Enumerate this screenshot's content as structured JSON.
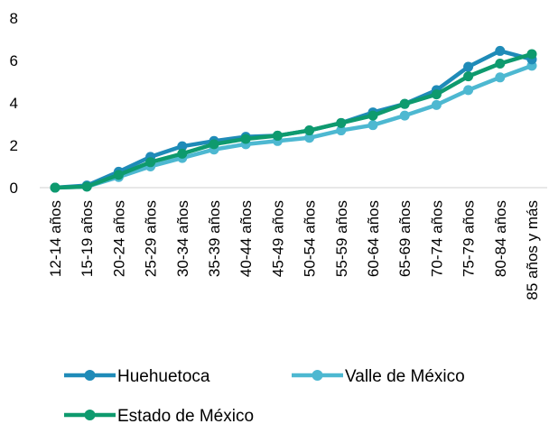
{
  "chart_data": {
    "type": "line",
    "categories": [
      "12-14 años",
      "15-19 años",
      "20-24 años",
      "25-29 años",
      "30-34 años",
      "35-39 años",
      "40-44 años",
      "45-49 años",
      "50-54 años",
      "55-59 años",
      "60-64 años",
      "65-69 años",
      "70-74 años",
      "75-79 años",
      "80-84 años",
      "85 años y más"
    ],
    "series": [
      {
        "name": "Huehuetoca",
        "color": "#1f8bb8",
        "values": [
          0.0,
          0.1,
          0.75,
          1.45,
          1.95,
          2.2,
          2.4,
          2.45,
          2.7,
          3.05,
          3.55,
          3.95,
          4.6,
          5.7,
          6.45,
          6.05
        ]
      },
      {
        "name": "Valle de México",
        "color": "#4db8d1",
        "values": [
          0.0,
          0.05,
          0.5,
          1.0,
          1.4,
          1.8,
          2.05,
          2.2,
          2.35,
          2.7,
          2.95,
          3.4,
          3.9,
          4.6,
          5.2,
          5.75
        ]
      },
      {
        "name": "Estado de México",
        "color": "#0e9a6e",
        "values": [
          0.0,
          0.05,
          0.6,
          1.2,
          1.6,
          2.05,
          2.3,
          2.45,
          2.7,
          3.05,
          3.4,
          3.95,
          4.4,
          5.25,
          5.85,
          6.3
        ]
      }
    ],
    "y_ticks": [
      "0",
      "2",
      "4",
      "6",
      "8"
    ],
    "ylim": [
      0,
      8
    ],
    "grid": false,
    "legend": "bottom"
  }
}
